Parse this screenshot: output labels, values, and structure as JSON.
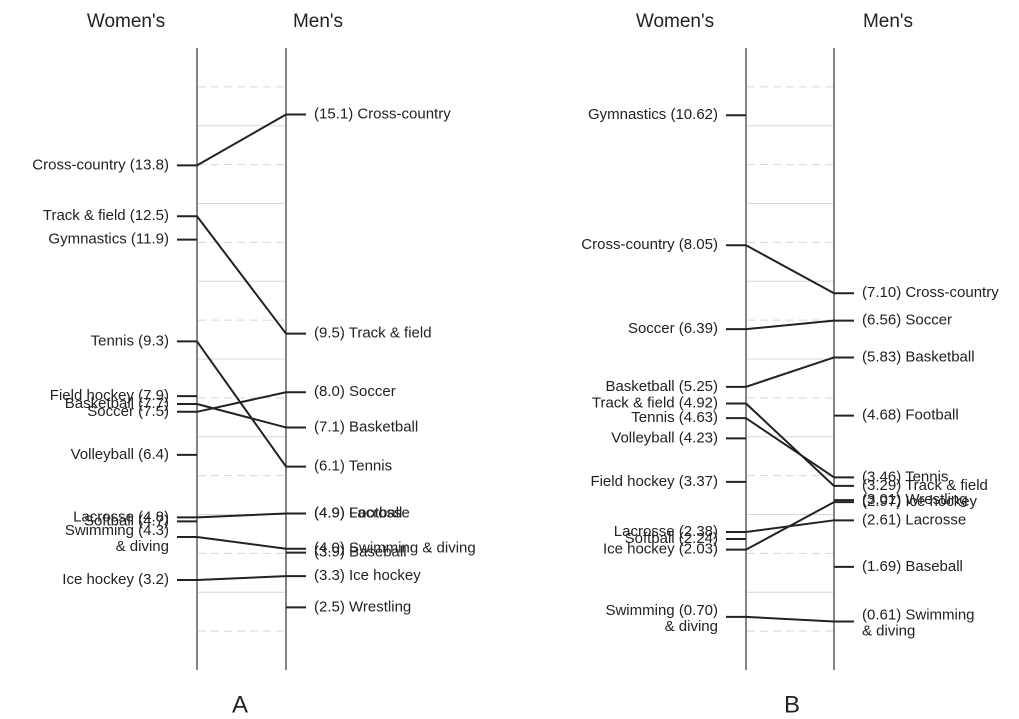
{
  "chart_data": [
    {
      "type": "slopegraph",
      "panel_label": "A",
      "left_header": "Women's",
      "right_header": "Men's",
      "ylim": [
        0.9,
        16.8
      ],
      "left": [
        {
          "value": 13.8,
          "text": [
            "Cross-country (13.8)"
          ]
        },
        {
          "value": 12.5,
          "text": [
            "Track & field (12.5)"
          ]
        },
        {
          "value": 11.9,
          "text": [
            "Gymnastics (11.9)"
          ]
        },
        {
          "value": 9.3,
          "text": [
            "Tennis (9.3)"
          ]
        },
        {
          "value": 7.9,
          "text": [
            "Field hockey (7.9)"
          ]
        },
        {
          "value": 7.7,
          "text": [
            "Basketball (7.7)"
          ]
        },
        {
          "value": 7.5,
          "text": [
            "Soccer (7.5)"
          ]
        },
        {
          "value": 6.4,
          "text": [
            "Volleyball (6.4)"
          ]
        },
        {
          "value": 4.8,
          "text": [
            "Lacrosse (4.8)"
          ]
        },
        {
          "value": 4.7,
          "text": [
            "Softball (4.7)"
          ]
        },
        {
          "value": 4.3,
          "text": [
            "Swimming (4.3)",
            "& diving"
          ]
        },
        {
          "value": 3.2,
          "text": [
            "Ice hockey (3.2)"
          ]
        }
      ],
      "right": [
        {
          "value": 15.1,
          "text": [
            "(15.1) Cross-country"
          ]
        },
        {
          "value": 9.5,
          "text": [
            "(9.5) Track & field"
          ]
        },
        {
          "value": 8.0,
          "text": [
            "(8.0) Soccer"
          ]
        },
        {
          "value": 7.1,
          "text": [
            "(7.1) Basketball"
          ]
        },
        {
          "value": 6.1,
          "text": [
            "(6.1) Tennis"
          ]
        },
        {
          "value": 4.9,
          "text": [
            "(4.9) Lacrosse"
          ]
        },
        {
          "value": 4.9,
          "text": [
            "(4.9) Football"
          ]
        },
        {
          "value": 4.0,
          "text": [
            "(4.0) Swimming & diving"
          ]
        },
        {
          "value": 3.9,
          "text": [
            "(3.9) Baseball"
          ]
        },
        {
          "value": 3.3,
          "text": [
            "(3.3) Ice hockey"
          ]
        },
        {
          "value": 2.5,
          "text": [
            "(2.5) Wrestling"
          ]
        }
      ],
      "links": [
        [
          0,
          0
        ],
        [
          1,
          1
        ],
        [
          3,
          4
        ],
        [
          5,
          3
        ],
        [
          6,
          2
        ],
        [
          8,
          5
        ],
        [
          10,
          7
        ],
        [
          11,
          9
        ]
      ]
    },
    {
      "type": "slopegraph",
      "panel_label": "B",
      "left_header": "Women's",
      "right_header": "Men's",
      "ylim": [
        -0.35,
        11.95
      ],
      "left": [
        {
          "value": 10.62,
          "text": [
            "Gymnastics (10.62)"
          ]
        },
        {
          "value": 8.05,
          "text": [
            "Cross-country (8.05)"
          ]
        },
        {
          "value": 6.39,
          "text": [
            "Soccer (6.39)"
          ]
        },
        {
          "value": 5.25,
          "text": [
            "Basketball (5.25)"
          ]
        },
        {
          "value": 4.92,
          "text": [
            "Track & field (4.92)"
          ]
        },
        {
          "value": 4.63,
          "text": [
            "Tennis (4.63)"
          ]
        },
        {
          "value": 4.23,
          "text": [
            "Volleyball (4.23)"
          ]
        },
        {
          "value": 3.37,
          "text": [
            "Field hockey (3.37)"
          ]
        },
        {
          "value": 2.38,
          "text": [
            "Lacrosse (2.38)"
          ]
        },
        {
          "value": 2.24,
          "text": [
            "Softball (2.24)"
          ]
        },
        {
          "value": 2.03,
          "text": [
            "Ice hockey (2.03)"
          ]
        },
        {
          "value": 0.7,
          "text": [
            "Swimming (0.70)",
            "& diving"
          ]
        }
      ],
      "right": [
        {
          "value": 7.1,
          "text": [
            "(7.10) Cross-country"
          ]
        },
        {
          "value": 6.56,
          "text": [
            "(6.56) Soccer"
          ]
        },
        {
          "value": 5.83,
          "text": [
            "(5.83) Basketball"
          ]
        },
        {
          "value": 4.68,
          "text": [
            "(4.68) Football"
          ]
        },
        {
          "value": 3.46,
          "text": [
            "(3.46) Tennis"
          ]
        },
        {
          "value": 3.29,
          "text": [
            "(3.29) Track & field"
          ]
        },
        {
          "value": 3.01,
          "text": [
            "(3.01) Wrestling"
          ]
        },
        {
          "value": 2.97,
          "text": [
            "(2.97) Ice hockey"
          ]
        },
        {
          "value": 2.61,
          "text": [
            "(2.61) Lacrosse"
          ]
        },
        {
          "value": 1.69,
          "text": [
            "(1.69) Baseball"
          ]
        },
        {
          "value": 0.61,
          "text": [
            "(0.61) Swimming",
            "& diving"
          ]
        }
      ],
      "links": [
        [
          1,
          0
        ],
        [
          2,
          1
        ],
        [
          3,
          2
        ],
        [
          4,
          5
        ],
        [
          5,
          4
        ],
        [
          8,
          8
        ],
        [
          10,
          7
        ],
        [
          11,
          10
        ]
      ]
    }
  ]
}
